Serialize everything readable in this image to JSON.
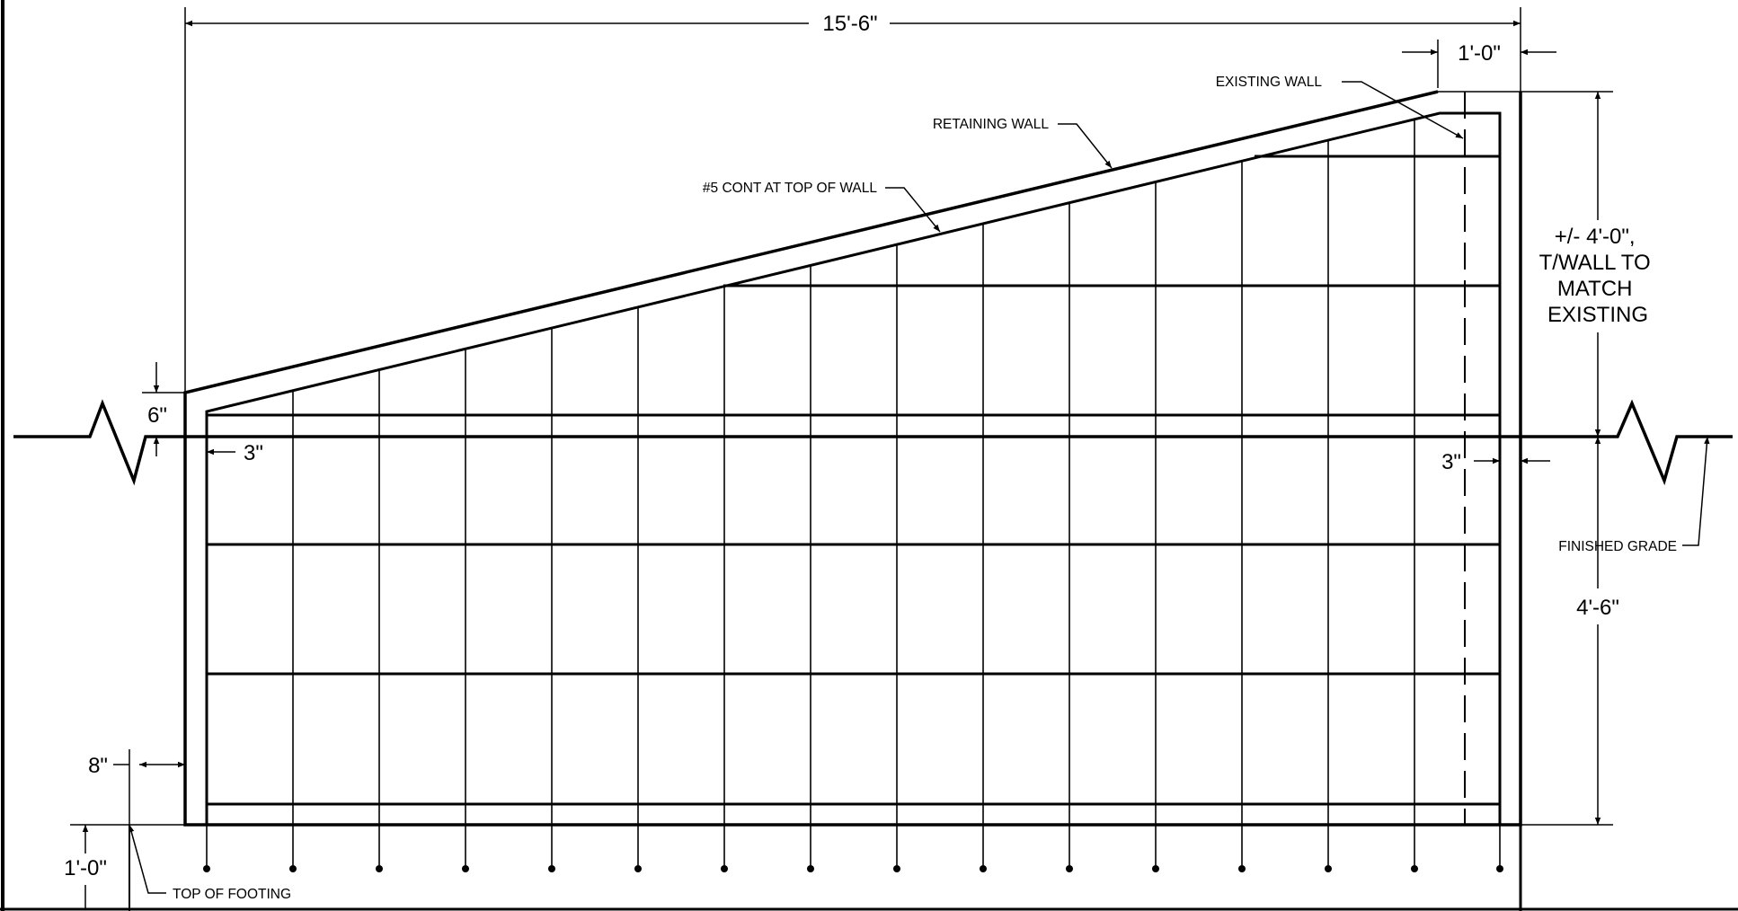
{
  "dimensions": {
    "overall_length": "15'-6\"",
    "wall_thickness": "1'-0\"",
    "height_above_grade": "6\"",
    "left_cover": "3\"",
    "right_cover": "3\"",
    "footing_offset": "8\"",
    "footing_depth": "1'-0\"",
    "height_below_grade": "4'-6\"",
    "top_of_wall_note": [
      "+/- 4'-0\",",
      "T/WALL TO",
      "MATCH",
      "EXISTING"
    ]
  },
  "callouts": {
    "existing_wall": "EXISTING WALL",
    "retaining_wall": "RETAINING WALL",
    "top_bar": "#5 CONT AT TOP OF WALL",
    "finished_grade": "FINISHED GRADE",
    "top_of_footing": "TOP OF FOOTING"
  },
  "colors": {
    "line": "#000000",
    "background": "#ffffff"
  }
}
